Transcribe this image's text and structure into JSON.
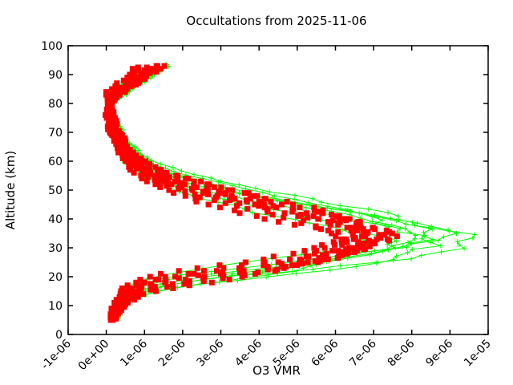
{
  "page": {
    "background": "#ffffff",
    "foreground": "#000000"
  },
  "chart_data": {
    "type": "line",
    "title": "Occultations from 2025-11-06",
    "xlabel": "O3 VMR",
    "ylabel": "Altitude (km)",
    "xlim": [
      -1e-06,
      1e-05
    ],
    "ylim": [
      0,
      100
    ],
    "grid": false,
    "legend": "none",
    "x_tick_values": [
      -1e-06,
      0,
      1e-06,
      2e-06,
      3e-06,
      4e-06,
      5e-06,
      6e-06,
      7e-06,
      8e-06,
      9e-06,
      1e-05
    ],
    "x_tick_labels": [
      "-1e-06",
      "0e+00",
      "1e-06",
      "2e-06",
      "3e-06",
      "4e-06",
      "5e-06",
      "6e-06",
      "7e-06",
      "8e-06",
      "9e-06",
      "1e-05"
    ],
    "y_tick_values": [
      0,
      10,
      20,
      30,
      40,
      50,
      60,
      70,
      80,
      90,
      100
    ],
    "y_tick_labels": [
      "0",
      "10",
      "20",
      "30",
      "40",
      "50",
      "60",
      "70",
      "80",
      "90",
      "100"
    ],
    "series_info": [
      {
        "style": "linespoints",
        "marker": "plus",
        "color": "#00ff00",
        "marker_size": 6,
        "step_km": 1.2
      },
      {
        "style": "points",
        "marker": "filled-square",
        "color": "#ff0000",
        "marker_size": 7,
        "step_km": 1.0
      }
    ],
    "base_profile": {
      "altitude_km": [
        5,
        7,
        9,
        11,
        13,
        15,
        17,
        19,
        21,
        23,
        25,
        27,
        29,
        31,
        33,
        34,
        35,
        37,
        39,
        41,
        43,
        45,
        47,
        49,
        51,
        53,
        55,
        57,
        59,
        61,
        63,
        65,
        68,
        71,
        74,
        77,
        80,
        82,
        84,
        86,
        88,
        90,
        92,
        94
      ],
      "o3_vmr_1e6": [
        0.15,
        0.2,
        0.26,
        0.34,
        0.46,
        0.65,
        1.05,
        1.75,
        2.75,
        3.85,
        4.85,
        5.65,
        6.25,
        6.7,
        6.95,
        7.0,
        6.9,
        6.5,
        6.0,
        5.45,
        4.8,
        4.1,
        3.45,
        2.85,
        2.3,
        1.8,
        1.38,
        1.05,
        0.82,
        0.66,
        0.53,
        0.43,
        0.29,
        0.19,
        0.12,
        0.08,
        0.05,
        0.1,
        0.25,
        0.45,
        0.62,
        0.78,
        0.9,
        1.0
      ]
    },
    "scale_blend": {
      "full_alt": 65,
      "zero_alt": 82
    },
    "jitter": {
      "rel": 0.035,
      "abs": 0.055
    },
    "green_profiles": [
      {
        "seed": 11,
        "scale_peak": 1.0,
        "scale_top": 1.1,
        "alt_shift": -3.0,
        "top": 92.5,
        "bottom": 5.0
      },
      {
        "seed": 22,
        "scale_peak": 1.08,
        "scale_top": 1.45,
        "alt_shift": -1.5,
        "top": 93.5,
        "bottom": 6.0
      },
      {
        "seed": 33,
        "scale_peak": 1.15,
        "scale_top": 0.9,
        "alt_shift": 0.0,
        "top": 91.5,
        "bottom": 5.5
      },
      {
        "seed": 44,
        "scale_peak": 1.22,
        "scale_top": 1.7,
        "alt_shift": 1.0,
        "top": 94.0,
        "bottom": 6.5
      },
      {
        "seed": 55,
        "scale_peak": 1.3,
        "scale_top": 1.25,
        "alt_shift": 2.0,
        "top": 92.0,
        "bottom": 5.0
      },
      {
        "seed": 66,
        "scale_peak": 1.37,
        "scale_top": 1.55,
        "alt_shift": -0.5,
        "top": 93.0,
        "bottom": 7.0
      },
      {
        "seed": 77,
        "scale_peak": 1.12,
        "scale_top": 1.85,
        "alt_shift": 2.8,
        "top": 94.0,
        "bottom": 6.0
      },
      {
        "seed": 88,
        "scale_peak": 1.25,
        "scale_top": 1.0,
        "alt_shift": -2.2,
        "top": 92.0,
        "bottom": 5.5
      }
    ],
    "red_profiles": [
      {
        "seed": 101,
        "scale_peak": 0.93,
        "scale_top": 0.65,
        "alt_shift": -3.2,
        "top": 92.5,
        "bottom": 5.0
      },
      {
        "seed": 102,
        "scale_peak": 0.96,
        "scale_top": 0.95,
        "alt_shift": -2.0,
        "top": 93.0,
        "bottom": 5.5
      },
      {
        "seed": 103,
        "scale_peak": 1.0,
        "scale_top": 1.25,
        "alt_shift": -0.8,
        "top": 93.5,
        "bottom": 6.0
      },
      {
        "seed": 104,
        "scale_peak": 1.03,
        "scale_top": 1.55,
        "alt_shift": 0.4,
        "top": 92.0,
        "bottom": 6.5
      },
      {
        "seed": 105,
        "scale_peak": 1.06,
        "scale_top": 1.75,
        "alt_shift": 1.5,
        "top": 93.0,
        "bottom": 5.0
      },
      {
        "seed": 106,
        "scale_peak": 0.98,
        "scale_top": 1.1,
        "alt_shift": 2.6,
        "top": 91.5,
        "bottom": 7.0
      },
      {
        "seed": 107,
        "scale_peak": 1.02,
        "scale_top": 0.8,
        "alt_shift": -1.2,
        "top": 92.5,
        "bottom": 5.5
      },
      {
        "seed": 108,
        "scale_peak": 0.95,
        "scale_top": 1.4,
        "alt_shift": 1.0,
        "top": 93.5,
        "bottom": 6.0
      }
    ]
  }
}
